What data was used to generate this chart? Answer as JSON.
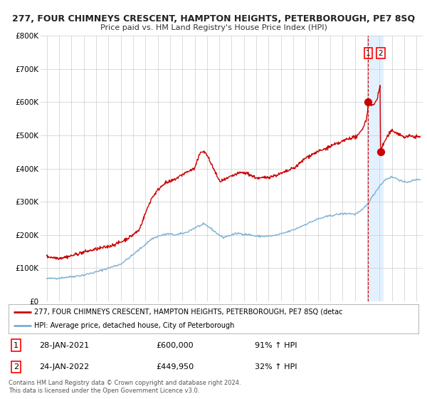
{
  "title": "277, FOUR CHIMNEYS CRESCENT, HAMPTON HEIGHTS, PETERBOROUGH, PE7 8SQ",
  "subtitle": "Price paid vs. HM Land Registry's House Price Index (HPI)",
  "legend_line1": "277, FOUR CHIMNEYS CRESCENT, HAMPTON HEIGHTS, PETERBOROUGH, PE7 8SQ (detac",
  "legend_line2": "HPI: Average price, detached house, City of Peterborough",
  "annotation1_date": "28-JAN-2021",
  "annotation1_price": "£600,000",
  "annotation1_hpi": "91% ↑ HPI",
  "annotation2_date": "24-JAN-2022",
  "annotation2_price": "£449,950",
  "annotation2_hpi": "32% ↑ HPI",
  "footer": "Contains HM Land Registry data © Crown copyright and database right 2024.\nThis data is licensed under the Open Government Licence v3.0.",
  "hpi_color": "#7bafd4",
  "price_color": "#cc0000",
  "background_color": "#ffffff",
  "grid_color": "#cccccc",
  "highlight_color": "#ddeeff",
  "point1_x": 2021.08,
  "point1_y": 600000,
  "point2_x": 2022.08,
  "point2_y": 449950,
  "ylim": [
    0,
    800000
  ],
  "xlim_start": 1994.5,
  "xlim_end": 2025.5
}
